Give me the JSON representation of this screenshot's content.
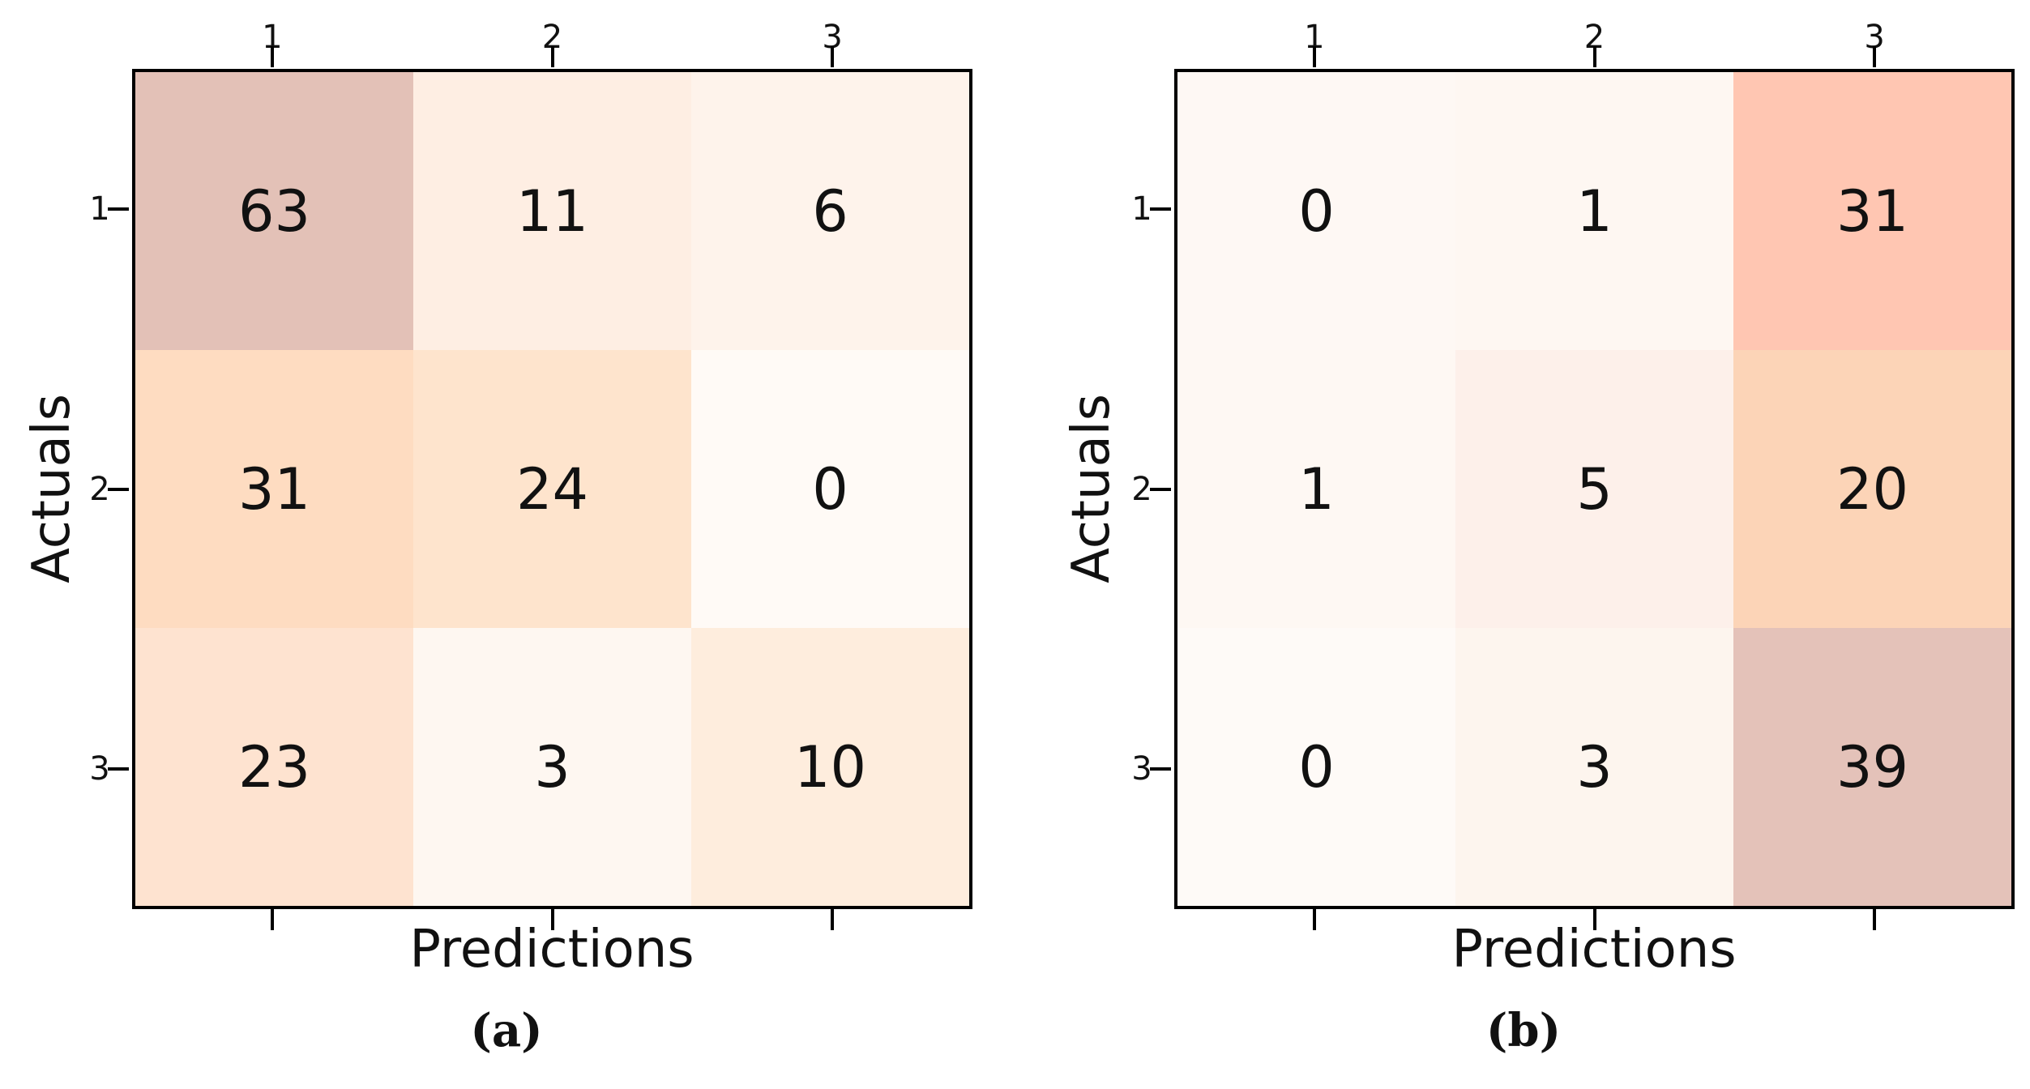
{
  "figure": {
    "background": "#ffffff",
    "axis_color": "#000000",
    "text_color": "#111111"
  },
  "chart_data": [
    {
      "type": "heatmap",
      "subtype": "confusion-matrix",
      "caption": "(a)",
      "xlabel": "Predictions",
      "ylabel": "Actuals",
      "x_ticks": [
        "1",
        "2",
        "3"
      ],
      "y_ticks": [
        "1",
        "2",
        "3"
      ],
      "rows": [
        [
          63,
          11,
          6
        ],
        [
          31,
          24,
          0
        ],
        [
          23,
          3,
          10
        ]
      ],
      "cell_colors": [
        [
          "#e3c1b7",
          "#feeee3",
          "#fef3eb"
        ],
        [
          "#fedcc1",
          "#fee4cd",
          "#fffaf6"
        ],
        [
          "#fee3d0",
          "#fef7f1",
          "#feeddd"
        ]
      ],
      "legend": "none",
      "grid": "off"
    },
    {
      "type": "heatmap",
      "subtype": "confusion-matrix",
      "caption": "(b)",
      "xlabel": "Predictions",
      "ylabel": "Actuals",
      "x_ticks": [
        "1",
        "2",
        "3"
      ],
      "y_ticks": [
        "1",
        "2",
        "3"
      ],
      "rows": [
        [
          0,
          1,
          31
        ],
        [
          1,
          5,
          20
        ],
        [
          0,
          3,
          39
        ]
      ],
      "cell_colors": [
        [
          "#fef8f4",
          "#fef7f2",
          "#ffc6b2"
        ],
        [
          "#fef8f3",
          "#fdf0ea",
          "#fcd4b7"
        ],
        [
          "#fefaf7",
          "#fdf5ee",
          "#e4c2b9"
        ]
      ],
      "legend": "none",
      "grid": "off"
    }
  ]
}
